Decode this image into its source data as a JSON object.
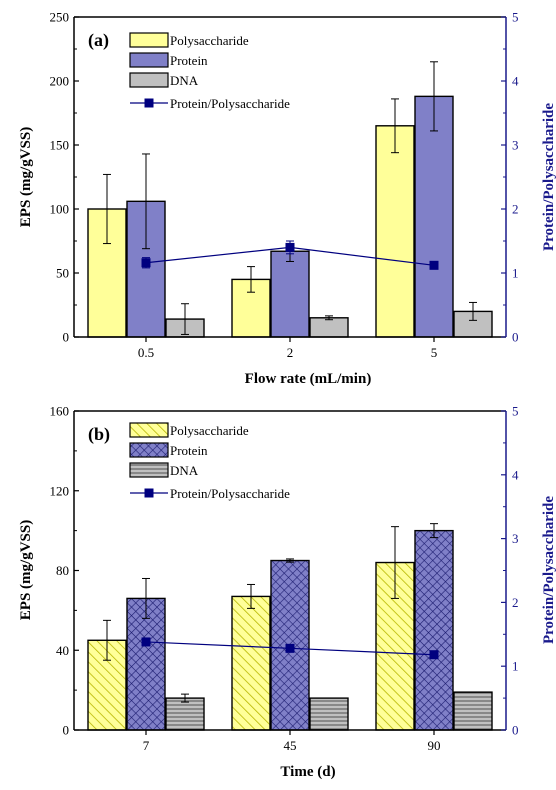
{
  "colors": {
    "polysaccharide": "#ffff99",
    "protein": "#8080c8",
    "dna": "#c0c0c0",
    "ratio": "#00007f",
    "right_axis": "#1a1a8c",
    "hatch_poly": "#b8b800",
    "hatch_protein": "#1c1c70",
    "hatch_dna": "#505050"
  },
  "chart_data": [
    {
      "type": "bar",
      "panel_label": "(a)",
      "categories": [
        "0.5",
        "2",
        "5"
      ],
      "xlabel": "Flow rate (mL/min)",
      "ylabel": "EPS (mg/gVSS)",
      "ylabel_right": "Protein/Polysaccharide",
      "ylim": [
        0,
        250
      ],
      "y_ticks": [
        "0",
        "50",
        "100",
        "150",
        "200",
        "250"
      ],
      "y_tick_values": [
        0,
        50,
        100,
        150,
        200,
        250
      ],
      "ylim_right": [
        0,
        5
      ],
      "y_ticks_right": [
        "0",
        "1",
        "2",
        "3",
        "4",
        "5"
      ],
      "y_tick_values_right": [
        0,
        1,
        2,
        3,
        4,
        5
      ],
      "hatched": false,
      "legend_position": "top-center",
      "series": [
        {
          "name": "Polysaccharide",
          "color_key": "polysaccharide",
          "values": [
            100,
            45,
            165
          ],
          "errors": [
            27,
            10,
            21
          ]
        },
        {
          "name": "Protein",
          "color_key": "protein",
          "values": [
            106,
            67,
            188
          ],
          "errors": [
            37,
            8,
            27
          ]
        },
        {
          "name": "DNA",
          "color_key": "dna",
          "values": [
            14,
            15,
            20
          ],
          "errors": [
            12,
            1.5,
            7
          ]
        }
      ],
      "line_series": {
        "name": "Protein/Polysaccharide",
        "axis": "right",
        "values": [
          1.16,
          1.4,
          1.12
        ],
        "errors": [
          0.08,
          0.1,
          0.03
        ]
      }
    },
    {
      "type": "bar",
      "panel_label": "(b)",
      "categories": [
        "7",
        "45",
        "90"
      ],
      "xlabel": "Time (d)",
      "ylabel": "EPS (mg/gVSS)",
      "ylabel_right": "Protein/Polysaccharide",
      "ylim": [
        0,
        160
      ],
      "y_ticks": [
        "0",
        "40",
        "80",
        "120",
        "160"
      ],
      "y_tick_values": [
        0,
        40,
        80,
        120,
        160
      ],
      "ylim_right": [
        0,
        5
      ],
      "y_ticks_right": [
        "0",
        "1",
        "2",
        "3",
        "4",
        "5"
      ],
      "y_tick_values_right": [
        0,
        1,
        2,
        3,
        4,
        5
      ],
      "hatched": true,
      "legend_position": "top-center",
      "series": [
        {
          "name": "Polysaccharide",
          "color_key": "polysaccharide",
          "hatch": "diagonal",
          "values": [
            45,
            67,
            84
          ],
          "errors": [
            10,
            6,
            18
          ]
        },
        {
          "name": "Protein",
          "color_key": "protein",
          "hatch": "cross",
          "values": [
            66,
            85,
            100
          ],
          "errors": [
            10,
            0.8,
            3.5
          ]
        },
        {
          "name": "DNA",
          "color_key": "dna",
          "hatch": "horizontal",
          "values": [
            16,
            16,
            19
          ],
          "errors": [
            2,
            0,
            0
          ]
        }
      ],
      "line_series": {
        "name": "Protein/Polysaccharide",
        "axis": "right",
        "values": [
          1.38,
          1.28,
          1.18
        ],
        "errors": [
          0.03,
          0.02,
          0.02
        ]
      }
    }
  ]
}
